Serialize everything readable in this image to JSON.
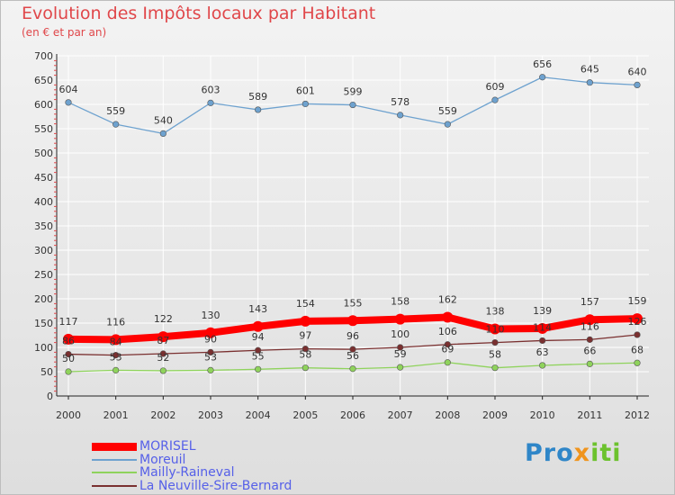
{
  "header": {
    "title": "Evolution des Impôts locaux par Habitant",
    "subtitle": "(en € et par an)"
  },
  "logo": {
    "text": "Proxiti"
  },
  "chart_data": {
    "type": "line",
    "title": "Evolution des Impôts locaux par Habitant",
    "subtitle": "(en € et par an)",
    "xlabel": "",
    "ylabel": "",
    "ylim": [
      0,
      700
    ],
    "yticks": [
      0,
      50,
      100,
      150,
      200,
      250,
      300,
      350,
      400,
      450,
      500,
      550,
      600,
      650,
      700
    ],
    "grid": true,
    "legend_position": "bottom-left",
    "categories": [
      "2000",
      "2001",
      "2002",
      "2003",
      "2004",
      "2005",
      "2006",
      "2007",
      "2008",
      "2009",
      "2010",
      "2011",
      "2012"
    ],
    "series": [
      {
        "name": "MORISEL",
        "color": "#ff0000",
        "highlight": true,
        "values": [
          117,
          116,
          122,
          130,
          143,
          154,
          155,
          158,
          162,
          138,
          139,
          157,
          159
        ]
      },
      {
        "name": "Moreuil",
        "color": "#6ea2cf",
        "highlight": false,
        "values": [
          604,
          559,
          540,
          603,
          589,
          601,
          599,
          578,
          559,
          609,
          656,
          645,
          640
        ]
      },
      {
        "name": "Mailly-Raineval",
        "color": "#8fd35c",
        "highlight": false,
        "values": [
          50,
          53,
          52,
          53,
          55,
          58,
          56,
          59,
          69,
          58,
          63,
          66,
          68
        ]
      },
      {
        "name": "La Neuville-Sire-Bernard",
        "color": "#7a3030",
        "highlight": false,
        "values": [
          86,
          84,
          87,
          90,
          94,
          97,
          96,
          100,
          106,
          110,
          114,
          116,
          126
        ]
      }
    ]
  }
}
